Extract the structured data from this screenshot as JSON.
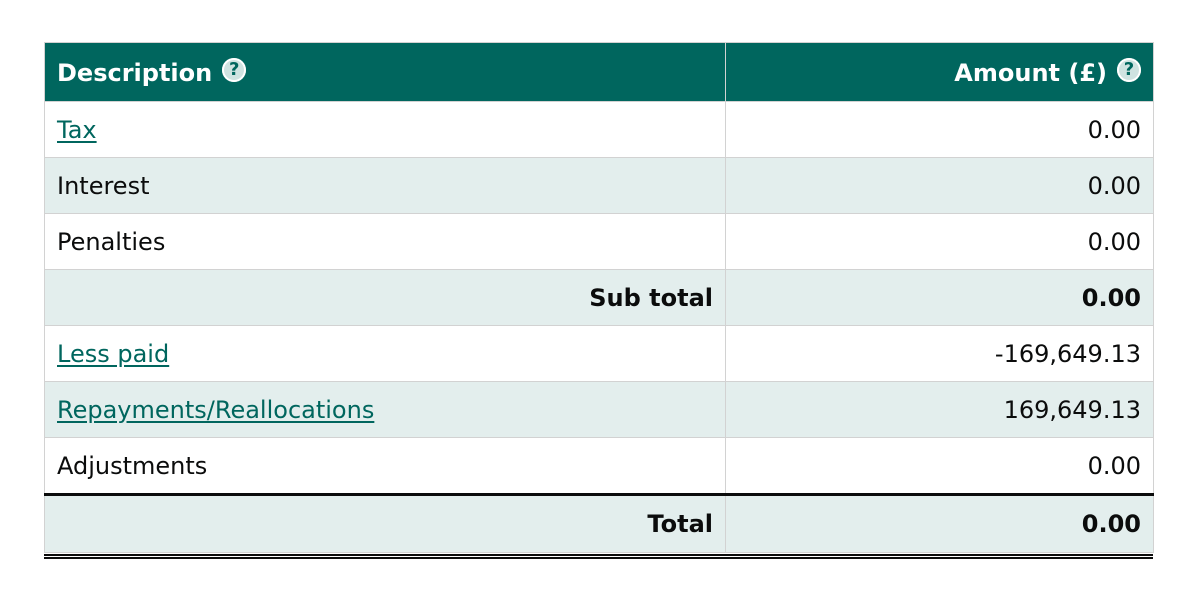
{
  "header": {
    "description": "Description",
    "amount": "Amount (£)",
    "help_glyph": "?"
  },
  "rows": [
    {
      "label": "Tax",
      "amount": "0.00"
    },
    {
      "label": "Interest",
      "amount": "0.00"
    },
    {
      "label": "Penalties",
      "amount": "0.00"
    },
    {
      "label": "Sub total",
      "amount": "0.00"
    },
    {
      "label": "Less paid",
      "amount": "-169,649.13"
    },
    {
      "label": "Repayments/Reallocations",
      "amount": "169,649.13"
    },
    {
      "label": "Adjustments",
      "amount": "0.00"
    }
  ],
  "total": {
    "label": "Total",
    "amount": "0.00"
  },
  "colors": {
    "header_bg": "#00665e",
    "stripe_bg": "#e3eeed",
    "link": "#00665e",
    "text": "#0b0c0c"
  }
}
